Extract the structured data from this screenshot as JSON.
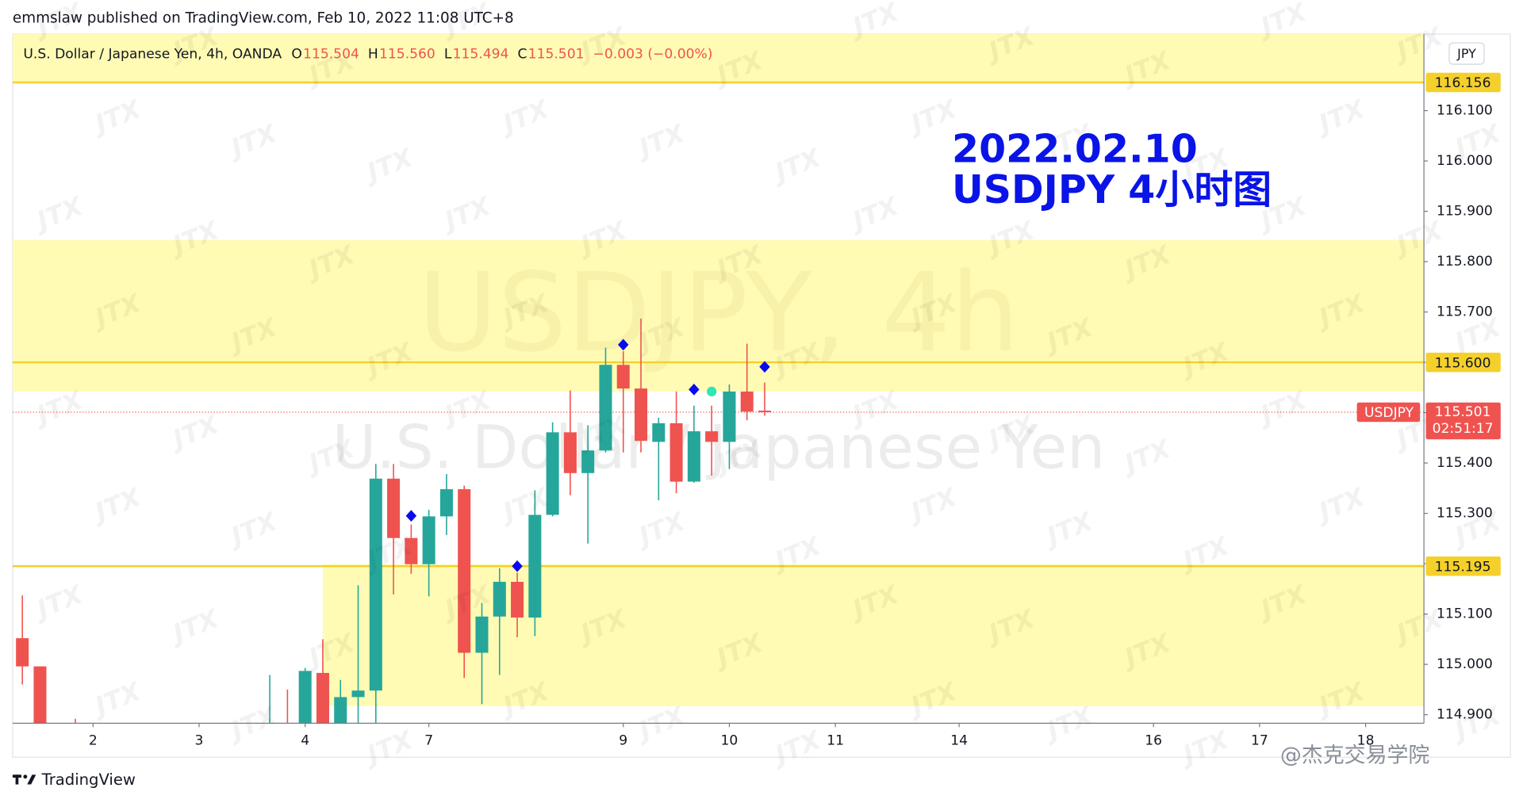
{
  "header": "emmslaw published on TradingView.com, Feb 10, 2022 11:08 UTC+8",
  "footer_brand": "TradingView",
  "footer_credit": "@杰克交易学院",
  "chart_data": {
    "type": "candlestick",
    "symbol_title": "U.S. Dollar / Japanese Yen, 4h, OANDA",
    "ohlc_legend": [
      {
        "key": "O",
        "value": 115.504,
        "value_label": "115.504"
      },
      {
        "key": "H",
        "value": 115.56,
        "value_label": "115.560"
      },
      {
        "key": "L",
        "value": 115.494,
        "value_label": "115.494"
      },
      {
        "key": "C",
        "value": 115.501,
        "value_label": "115.501"
      }
    ],
    "change": "−0.003 (−0.00%)",
    "currency": "JPY",
    "watermark_symbol": "USDJPY, 4h",
    "watermark_name": "U.S. Dollar / Japanese Yen",
    "watermark_pattern": "JTX",
    "annotation": [
      "2022.02.10",
      "USDJPY 4小时图"
    ],
    "annotation_color": "#0a14e6",
    "x": [
      0,
      1,
      3,
      14,
      15,
      16,
      17,
      18,
      19,
      20,
      21,
      22,
      23,
      24,
      25,
      26,
      27,
      28,
      29,
      30,
      31,
      32,
      33,
      34,
      35,
      36,
      37,
      38,
      39,
      40,
      41,
      42
    ],
    "open": [
      115.052,
      114.996,
      114.87,
      114.86,
      114.87,
      114.86,
      114.983,
      114.86,
      114.935,
      114.948,
      115.369,
      115.251,
      115.199,
      115.294,
      115.348,
      115.023,
      115.095,
      115.164,
      115.093,
      115.297,
      115.461,
      115.38,
      115.425,
      115.595,
      115.548,
      115.442,
      115.479,
      115.363,
      115.463,
      115.442,
      115.542,
      115.504
    ],
    "high": [
      115.137,
      114.996,
      114.892,
      114.979,
      114.95,
      114.993,
      115.05,
      114.969,
      115.157,
      115.398,
      115.398,
      115.278,
      115.307,
      115.378,
      115.355,
      115.122,
      115.191,
      115.182,
      115.346,
      115.481,
      115.544,
      115.475,
      115.629,
      115.622,
      115.687,
      115.49,
      115.542,
      115.514,
      115.514,
      115.556,
      115.637,
      115.56
    ],
    "low": [
      114.96,
      114.85,
      114.85,
      114.85,
      114.85,
      114.85,
      114.85,
      114.85,
      114.88,
      114.87,
      115.139,
      115.18,
      115.135,
      115.257,
      114.973,
      114.921,
      114.979,
      115.054,
      115.056,
      115.294,
      115.336,
      115.24,
      115.421,
      115.421,
      115.421,
      115.326,
      115.34,
      115.361,
      115.375,
      115.388,
      115.485,
      115.494
    ],
    "close": [
      114.996,
      114.87,
      114.86,
      114.87,
      114.86,
      114.987,
      114.86,
      114.935,
      114.948,
      115.369,
      115.251,
      115.199,
      115.294,
      115.348,
      115.023,
      115.095,
      115.164,
      115.093,
      115.297,
      115.461,
      115.38,
      115.425,
      115.595,
      115.548,
      115.444,
      115.479,
      115.363,
      115.463,
      115.442,
      115.542,
      115.502,
      115.501
    ],
    "up_color": "#26a69a",
    "down_color": "#ef5350",
    "xlim": [
      -0.55,
      79.3
    ],
    "xticks": [
      {
        "value": 4,
        "label": "2"
      },
      {
        "value": 10,
        "label": "3"
      },
      {
        "value": 16,
        "label": "4"
      },
      {
        "value": 23,
        "label": "7"
      },
      {
        "value": 34,
        "label": "9"
      },
      {
        "value": 40,
        "label": "10"
      },
      {
        "value": 46,
        "label": "11"
      },
      {
        "value": 53,
        "label": "14"
      },
      {
        "value": 64,
        "label": "16"
      },
      {
        "value": 70,
        "label": "17"
      },
      {
        "value": 76,
        "label": "18"
      }
    ],
    "ylim": [
      114.883,
      116.252
    ],
    "yticks": [
      {
        "value": 114.9,
        "label": "114.900"
      },
      {
        "value": 115,
        "label": "115.000"
      },
      {
        "value": 115.1,
        "label": "115.100"
      },
      {
        "value": 115.2,
        "label": "115.200"
      },
      {
        "value": 115.3,
        "label": "115.300"
      },
      {
        "value": 115.4,
        "label": "115.400"
      },
      {
        "value": 115.5,
        "label": "115.500"
      },
      {
        "value": 115.6,
        "label": "115.600"
      },
      {
        "value": 115.7,
        "label": "115.700"
      },
      {
        "value": 115.8,
        "label": "115.800"
      },
      {
        "value": 115.9,
        "label": "115.900"
      },
      {
        "value": 116,
        "label": "116.000"
      },
      {
        "value": 116.1,
        "label": "116.100"
      }
    ],
    "grid": false,
    "levels": [
      {
        "value": 116.156,
        "label": "116.156"
      },
      {
        "value": 115.6,
        "label": "115.600"
      },
      {
        "value": 115.195,
        "label": "115.195"
      }
    ],
    "level_color": "#f5d02a",
    "zones": [
      {
        "from": 116.156,
        "to": 116.252,
        "x_from": -0.55
      },
      {
        "from": 115.542,
        "to": 115.843,
        "x_from": -0.55
      },
      {
        "from": 114.917,
        "to": 115.199,
        "x_from": 17
      }
    ],
    "zone_color": "#fffbb4",
    "last_price": {
      "symbol": "USDJPY",
      "value": 115.501,
      "countdown": "02:51:17"
    },
    "markers": [
      {
        "shape": "diamond",
        "color": "#0a0aee",
        "x": [
          22,
          28,
          34,
          38,
          42
        ],
        "values": [
          115.295,
          115.195,
          115.635,
          115.546,
          115.591
        ]
      },
      {
        "shape": "circle",
        "color": "#2fe6b4",
        "x": [
          39
        ],
        "values": [
          115.542
        ]
      }
    ]
  }
}
